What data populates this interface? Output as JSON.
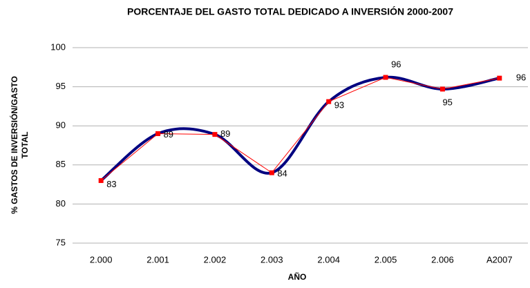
{
  "chart_data": {
    "type": "line",
    "title": "PORCENTAJE DEL GASTO TOTAL DEDICADO A INVERSIÓN 2000-2007",
    "xlabel": "AÑO",
    "ylabel": [
      "% GASTOS DE INVERSIÓN/GASTO",
      "TOTAL"
    ],
    "categories": [
      "2.000",
      "2.001",
      "2.002",
      "2.003",
      "2.004",
      "2.005",
      "2.006",
      "A2007"
    ],
    "values": [
      83.0,
      89.0,
      88.9,
      84.0,
      93.1,
      96.2,
      94.7,
      96.1
    ],
    "value_labels": [
      "83",
      "89",
      "89",
      "84",
      "93",
      "96",
      "95",
      "96"
    ],
    "color": "#ff0000",
    "smooth_color": "#000080",
    "marker": "square",
    "ylim": [
      75,
      100
    ],
    "yticks": [
      75,
      80,
      85,
      90,
      95,
      100
    ],
    "grid": true
  }
}
